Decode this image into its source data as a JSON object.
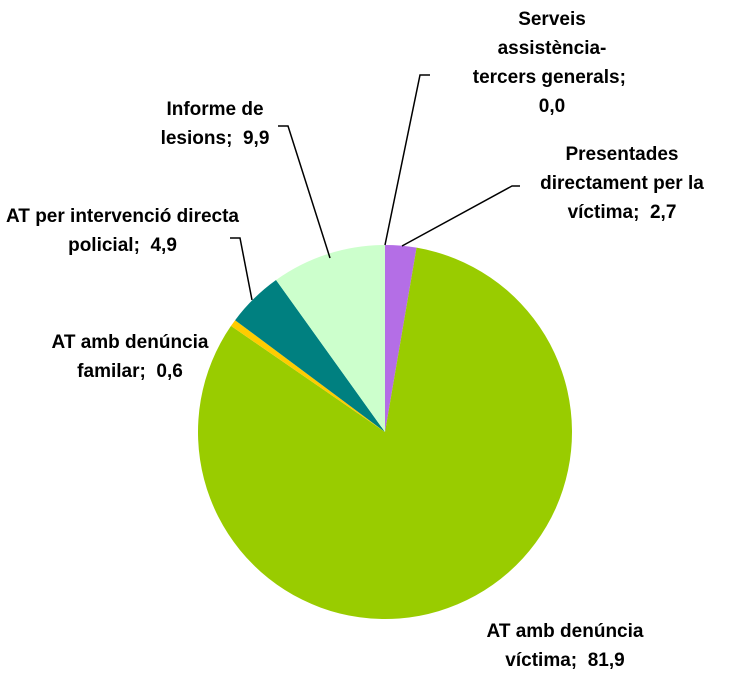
{
  "chart_data": {
    "type": "pie",
    "categories": [
      "Serveis assistència-tercers generals",
      "Presentades directament per la víctima",
      "AT amb denúncia víctima",
      "AT amb denúncia familar",
      "AT per intervenció directa policial",
      "Informe de lesions"
    ],
    "values": [
      0.0,
      2.7,
      81.9,
      0.6,
      4.9,
      9.9
    ],
    "value_labels": [
      "0,0",
      "2,7",
      "81,9",
      "0,6",
      "4,9",
      "9,9"
    ],
    "label_separator": ";",
    "colors": [
      "#6666cc",
      "#b46ee6",
      "#99cc00",
      "#ffcc00",
      "#008080",
      "#ccffcc"
    ]
  }
}
